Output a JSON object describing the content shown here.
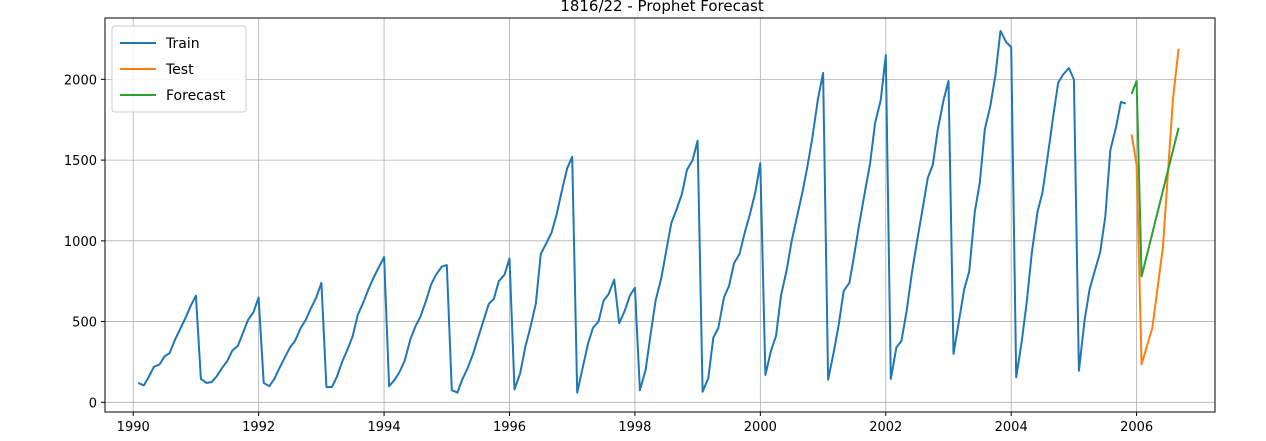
{
  "chart_data": {
    "type": "line",
    "title": "1816/22 - Prophet Forecast",
    "xlabel": "",
    "ylabel": "",
    "xlim": [
      1989.55,
      2007.25
    ],
    "ylim": [
      -60,
      2380
    ],
    "x_ticks": [
      1990,
      1992,
      1994,
      1996,
      1998,
      2000,
      2002,
      2004,
      2006
    ],
    "y_ticks": [
      0,
      500,
      1000,
      1500,
      2000
    ],
    "grid": true,
    "legend_position": "top-left",
    "series": [
      {
        "name": "Train",
        "color": "#1f77b4",
        "x": [
          1990.08,
          1990.17,
          1990.25,
          1990.33,
          1990.42,
          1990.5,
          1990.58,
          1990.67,
          1990.75,
          1990.83,
          1990.92,
          1991.0,
          1991.08,
          1991.17,
          1991.25,
          1991.33,
          1991.42,
          1991.5,
          1991.58,
          1991.67,
          1991.75,
          1991.83,
          1991.92,
          1992.0,
          1992.08,
          1992.17,
          1992.25,
          1992.33,
          1992.42,
          1992.5,
          1992.58,
          1992.67,
          1992.75,
          1992.83,
          1992.92,
          1993.0,
          1993.08,
          1993.17,
          1993.25,
          1993.33,
          1993.42,
          1993.5,
          1993.58,
          1993.67,
          1993.75,
          1993.83,
          1993.92,
          1994.0,
          1994.08,
          1994.17,
          1994.25,
          1994.33,
          1994.42,
          1994.5,
          1994.58,
          1994.67,
          1994.75,
          1994.83,
          1994.92,
          1995.0,
          1995.08,
          1995.17,
          1995.25,
          1995.33,
          1995.42,
          1995.5,
          1995.58,
          1995.67,
          1995.75,
          1995.83,
          1995.92,
          1996.0,
          1996.08,
          1996.17,
          1996.25,
          1996.33,
          1996.42,
          1996.5,
          1996.58,
          1996.67,
          1996.75,
          1996.83,
          1996.92,
          1997.0,
          1997.08,
          1997.17,
          1997.25,
          1997.33,
          1997.42,
          1997.5,
          1997.58,
          1997.67,
          1997.75,
          1997.83,
          1997.92,
          1998.0,
          1998.08,
          1998.17,
          1998.25,
          1998.33,
          1998.42,
          1998.5,
          1998.58,
          1998.67,
          1998.75,
          1998.83,
          1998.92,
          1999.0,
          1999.08,
          1999.17,
          1999.25,
          1999.33,
          1999.42,
          1999.5,
          1999.58,
          1999.67,
          1999.75,
          1999.83,
          1999.92,
          2000.0,
          2000.08,
          2000.17,
          2000.25,
          2000.33,
          2000.42,
          2000.5,
          2000.58,
          2000.67,
          2000.75,
          2000.83,
          2000.92,
          2001.0,
          2001.08,
          2001.17,
          2001.25,
          2001.33,
          2001.42,
          2001.5,
          2001.58,
          2001.67,
          2001.75,
          2001.83,
          2001.92,
          2002.0,
          2002.08,
          2002.17,
          2002.25,
          2002.33,
          2002.42,
          2002.5,
          2002.58,
          2002.67,
          2002.75,
          2002.83,
          2002.92,
          2003.0,
          2003.08,
          2003.17,
          2003.25,
          2003.33,
          2003.42,
          2003.5,
          2003.58,
          2003.67,
          2003.75,
          2003.83,
          2003.92,
          2004.0,
          2004.08,
          2004.17,
          2004.25,
          2004.33,
          2004.42,
          2004.5,
          2004.58,
          2004.67,
          2004.75,
          2004.83,
          2004.92,
          2005.0,
          2005.08,
          2005.17,
          2005.25,
          2005.33,
          2005.42,
          2005.5,
          2005.58,
          2005.67,
          2005.75,
          2005.83
        ],
        "y": [
          120,
          105,
          160,
          220,
          235,
          285,
          305,
          390,
          455,
          520,
          600,
          660,
          145,
          120,
          125,
          160,
          215,
          255,
          320,
          350,
          430,
          510,
          560,
          650,
          120,
          100,
          145,
          210,
          280,
          340,
          380,
          460,
          510,
          580,
          650,
          740,
          95,
          95,
          160,
          250,
          330,
          410,
          540,
          620,
          700,
          770,
          840,
          900,
          100,
          140,
          190,
          260,
          390,
          470,
          530,
          630,
          730,
          790,
          840,
          850,
          75,
          60,
          145,
          210,
          300,
          400,
          500,
          610,
          640,
          750,
          790,
          890,
          80,
          180,
          340,
          460,
          610,
          920,
          980,
          1050,
          1160,
          1300,
          1450,
          1520,
          60,
          220,
          360,
          460,
          500,
          630,
          670,
          760,
          490,
          560,
          660,
          710,
          75,
          200,
          420,
          630,
          770,
          940,
          1110,
          1200,
          1290,
          1440,
          1500,
          1620,
          65,
          150,
          400,
          460,
          650,
          720,
          860,
          920,
          1050,
          1160,
          1300,
          1480,
          170,
          320,
          410,
          660,
          820,
          1000,
          1140,
          1300,
          1460,
          1640,
          1880,
          2040,
          140,
          310,
          480,
          690,
          740,
          920,
          1110,
          1310,
          1480,
          1730,
          1870,
          2150,
          145,
          340,
          380,
          560,
          810,
          1000,
          1180,
          1390,
          1470,
          1690,
          1870,
          1990,
          300,
          510,
          700,
          810,
          1180,
          1360,
          1690,
          1840,
          2030,
          2300,
          2230,
          2200,
          155,
          380,
          630,
          930,
          1180,
          1300,
          1520,
          1770,
          1980,
          2030,
          2070,
          2000,
          195,
          510,
          700,
          810,
          930,
          1150,
          1560,
          1700,
          1860,
          1850
        ]
      },
      {
        "name": "Test",
        "color": "#ff7f0e",
        "x": [
          2005.92,
          2006.0,
          2006.08,
          2006.25,
          2006.42,
          2006.58,
          2006.67
        ],
        "y": [
          1660,
          1470,
          235,
          460,
          960,
          1880,
          2190
        ]
      },
      {
        "name": "Forecast",
        "color": "#2ca02c",
        "x": [
          2005.92,
          2006.0,
          2006.08,
          2006.67
        ],
        "y": [
          1910,
          1990,
          780,
          1700
        ]
      }
    ]
  }
}
